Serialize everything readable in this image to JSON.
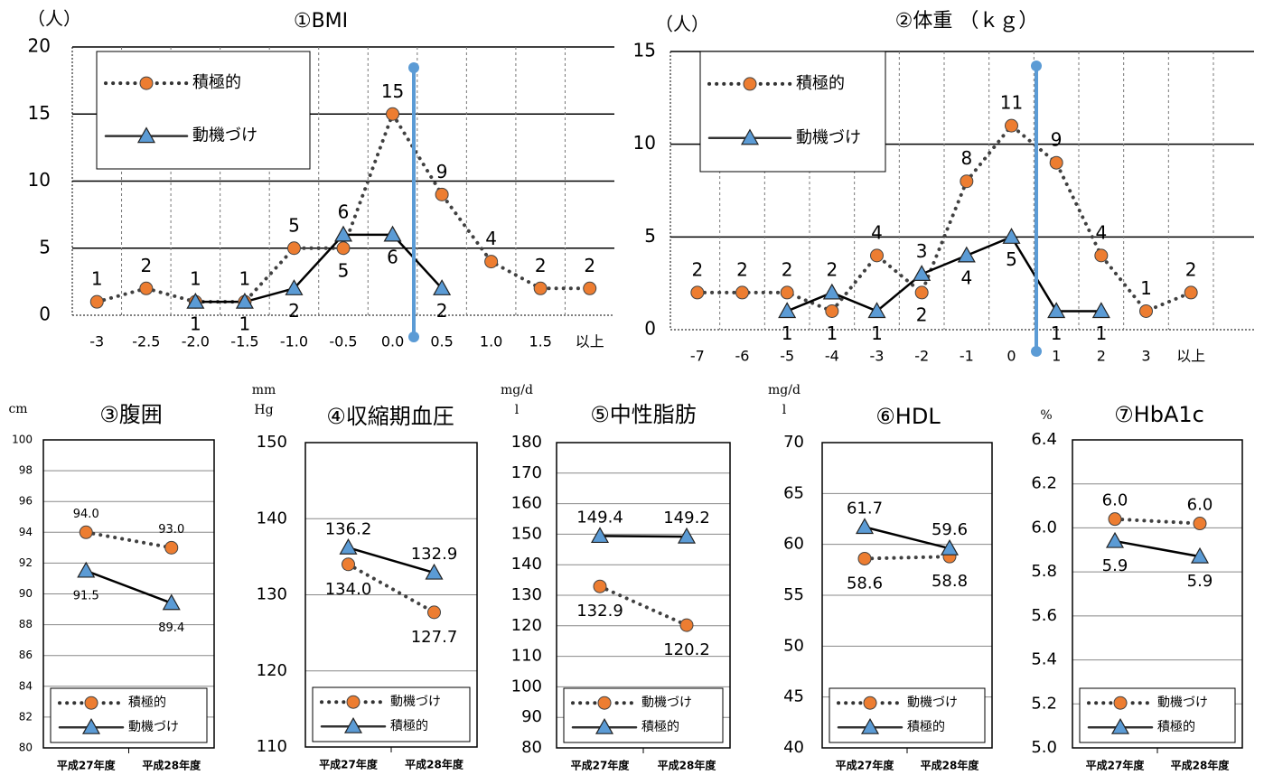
{
  "chart_data": [
    {
      "type": "line",
      "title": "①BMI",
      "y_unit": [
        "（人）"
      ],
      "categories": [
        "-3",
        "-2.5",
        "-2.0",
        "-1.5",
        "-1.0",
        "-0.5",
        "0.0",
        "0.5",
        "1.0",
        "1.5",
        "以上"
      ],
      "ylim": [
        0,
        20
      ],
      "yticks": [
        0,
        5,
        10,
        15,
        20
      ],
      "grid": true,
      "legend": "upper left",
      "series": [
        {
          "name": "積極的",
          "color": "#ed7d31",
          "line_style": "dotted",
          "marker": "circle",
          "values": [
            1,
            2,
            1,
            1,
            5,
            5,
            15,
            9,
            4,
            2,
            2
          ]
        },
        {
          "name": "動機づけ",
          "color": "#5b9bd5",
          "line_style": "solid",
          "marker": "triangle",
          "values": [
            null,
            null,
            1,
            1,
            2,
            6,
            6,
            2,
            null,
            null,
            null
          ]
        }
      ]
    },
    {
      "type": "line",
      "title": "②体重 （ｋｇ）",
      "y_unit": [
        "（人）"
      ],
      "categories": [
        "-7",
        "-6",
        "-5",
        "-4",
        "-3",
        "-2",
        "-1",
        "0",
        "1",
        "2",
        "3",
        "以上"
      ],
      "ylim": [
        0,
        15
      ],
      "yticks": [
        0,
        5,
        10,
        15
      ],
      "grid": true,
      "legend": "upper left",
      "series": [
        {
          "name": "積極的",
          "color": "#ed7d31",
          "line_style": "dotted",
          "marker": "circle",
          "values": [
            2,
            2,
            2,
            1,
            4,
            2,
            8,
            11,
            9,
            4,
            1,
            2
          ]
        },
        {
          "name": "動機づけ",
          "color": "#5b9bd5",
          "line_style": "solid",
          "marker": "triangle",
          "values": [
            null,
            null,
            1,
            2,
            1,
            3,
            4,
            5,
            1,
            1,
            null,
            null
          ]
        }
      ]
    },
    {
      "type": "line",
      "title": "③腹囲",
      "y_unit": [
        "cm"
      ],
      "categories": [
        "平成27年度",
        "平成28年度"
      ],
      "ylim": [
        80,
        100
      ],
      "yticks": [
        80,
        82,
        84,
        86,
        88,
        90,
        92,
        94,
        96,
        98,
        100
      ],
      "grid": true,
      "legend": "lower center",
      "series": [
        {
          "name": "積極的",
          "color": "#ed7d31",
          "line_style": "dotted",
          "marker": "circle",
          "values": [
            94.0,
            93.0
          ],
          "value_labels": [
            "94.0",
            "93.0"
          ]
        },
        {
          "name": "動機づけ",
          "color": "#5b9bd5",
          "line_style": "solid",
          "marker": "triangle",
          "values": [
            91.5,
            89.4
          ],
          "value_labels": [
            "91.5",
            "89.4"
          ]
        }
      ]
    },
    {
      "type": "line",
      "title": "④収縮期血圧",
      "y_unit": [
        "mm",
        "Hg"
      ],
      "categories": [
        "平成27年度",
        "平成28年度"
      ],
      "ylim": [
        110,
        150
      ],
      "yticks": [
        110,
        120,
        130,
        140,
        150
      ],
      "grid": true,
      "legend": "lower center",
      "series": [
        {
          "name": "動機づけ",
          "color": "#ed7d31",
          "line_style": "dotted",
          "marker": "circle",
          "values": [
            134.0,
            127.7
          ],
          "value_labels": [
            "134.0",
            "127.7"
          ]
        },
        {
          "name": "積極的",
          "color": "#5b9bd5",
          "line_style": "solid",
          "marker": "triangle",
          "values": [
            136.2,
            132.9
          ],
          "value_labels": [
            "136.2",
            "132.9"
          ]
        }
      ]
    },
    {
      "type": "line",
      "title": "⑤中性脂肪",
      "y_unit": [
        "mg/d",
        "l"
      ],
      "categories": [
        "平成27年度",
        "平成28年度"
      ],
      "ylim": [
        80,
        180
      ],
      "yticks": [
        80,
        90,
        100,
        110,
        120,
        130,
        140,
        150,
        160,
        170,
        180
      ],
      "grid": true,
      "legend": "lower center",
      "series": [
        {
          "name": "動機づけ",
          "color": "#ed7d31",
          "line_style": "dotted",
          "marker": "circle",
          "values": [
            132.9,
            120.2
          ],
          "value_labels": [
            "132.9",
            "120.2"
          ]
        },
        {
          "name": "積極的",
          "color": "#5b9bd5",
          "line_style": "solid",
          "marker": "triangle",
          "values": [
            149.4,
            149.2
          ],
          "value_labels": [
            "149.4",
            "149.2"
          ]
        }
      ]
    },
    {
      "type": "line",
      "title": "⑥HDL",
      "y_unit": [
        "mg/d",
        "l"
      ],
      "categories": [
        "平成27年度",
        "平成28年度"
      ],
      "ylim": [
        40,
        70
      ],
      "yticks": [
        40,
        45,
        50,
        55,
        60,
        65,
        70
      ],
      "grid": true,
      "legend": "lower center",
      "series": [
        {
          "name": "動機づけ",
          "color": "#ed7d31",
          "line_style": "dotted",
          "marker": "circle",
          "values": [
            58.6,
            58.8
          ],
          "value_labels": [
            "58.6",
            "58.8"
          ]
        },
        {
          "name": "積極的",
          "color": "#5b9bd5",
          "line_style": "solid",
          "marker": "triangle",
          "values": [
            61.7,
            59.6
          ],
          "value_labels": [
            "61.7",
            "59.6"
          ]
        }
      ]
    },
    {
      "type": "line",
      "title": "⑦HbA1c",
      "y_unit": [
        "%"
      ],
      "categories": [
        "平成27年度",
        "平成28年度"
      ],
      "ylim": [
        5.0,
        6.4
      ],
      "yticks": [
        {
          "value": 5.0,
          "label": "5.0"
        },
        5.2,
        5.4,
        5.6,
        5.8,
        {
          "value": 6.0,
          "label": "6.0"
        },
        6.2,
        6.4
      ],
      "grid": true,
      "legend": "lower center",
      "series": [
        {
          "name": "動機づけ",
          "color": "#ed7d31",
          "line_style": "dotted",
          "marker": "circle",
          "values": [
            6.04,
            6.02
          ],
          "value_labels": [
            "6.0",
            "6.0"
          ]
        },
        {
          "name": "積極的",
          "color": "#5b9bd5",
          "line_style": "solid",
          "marker": "triangle",
          "values": [
            5.94,
            5.87
          ],
          "value_labels": [
            "5.9",
            "5.9"
          ]
        }
      ]
    }
  ]
}
